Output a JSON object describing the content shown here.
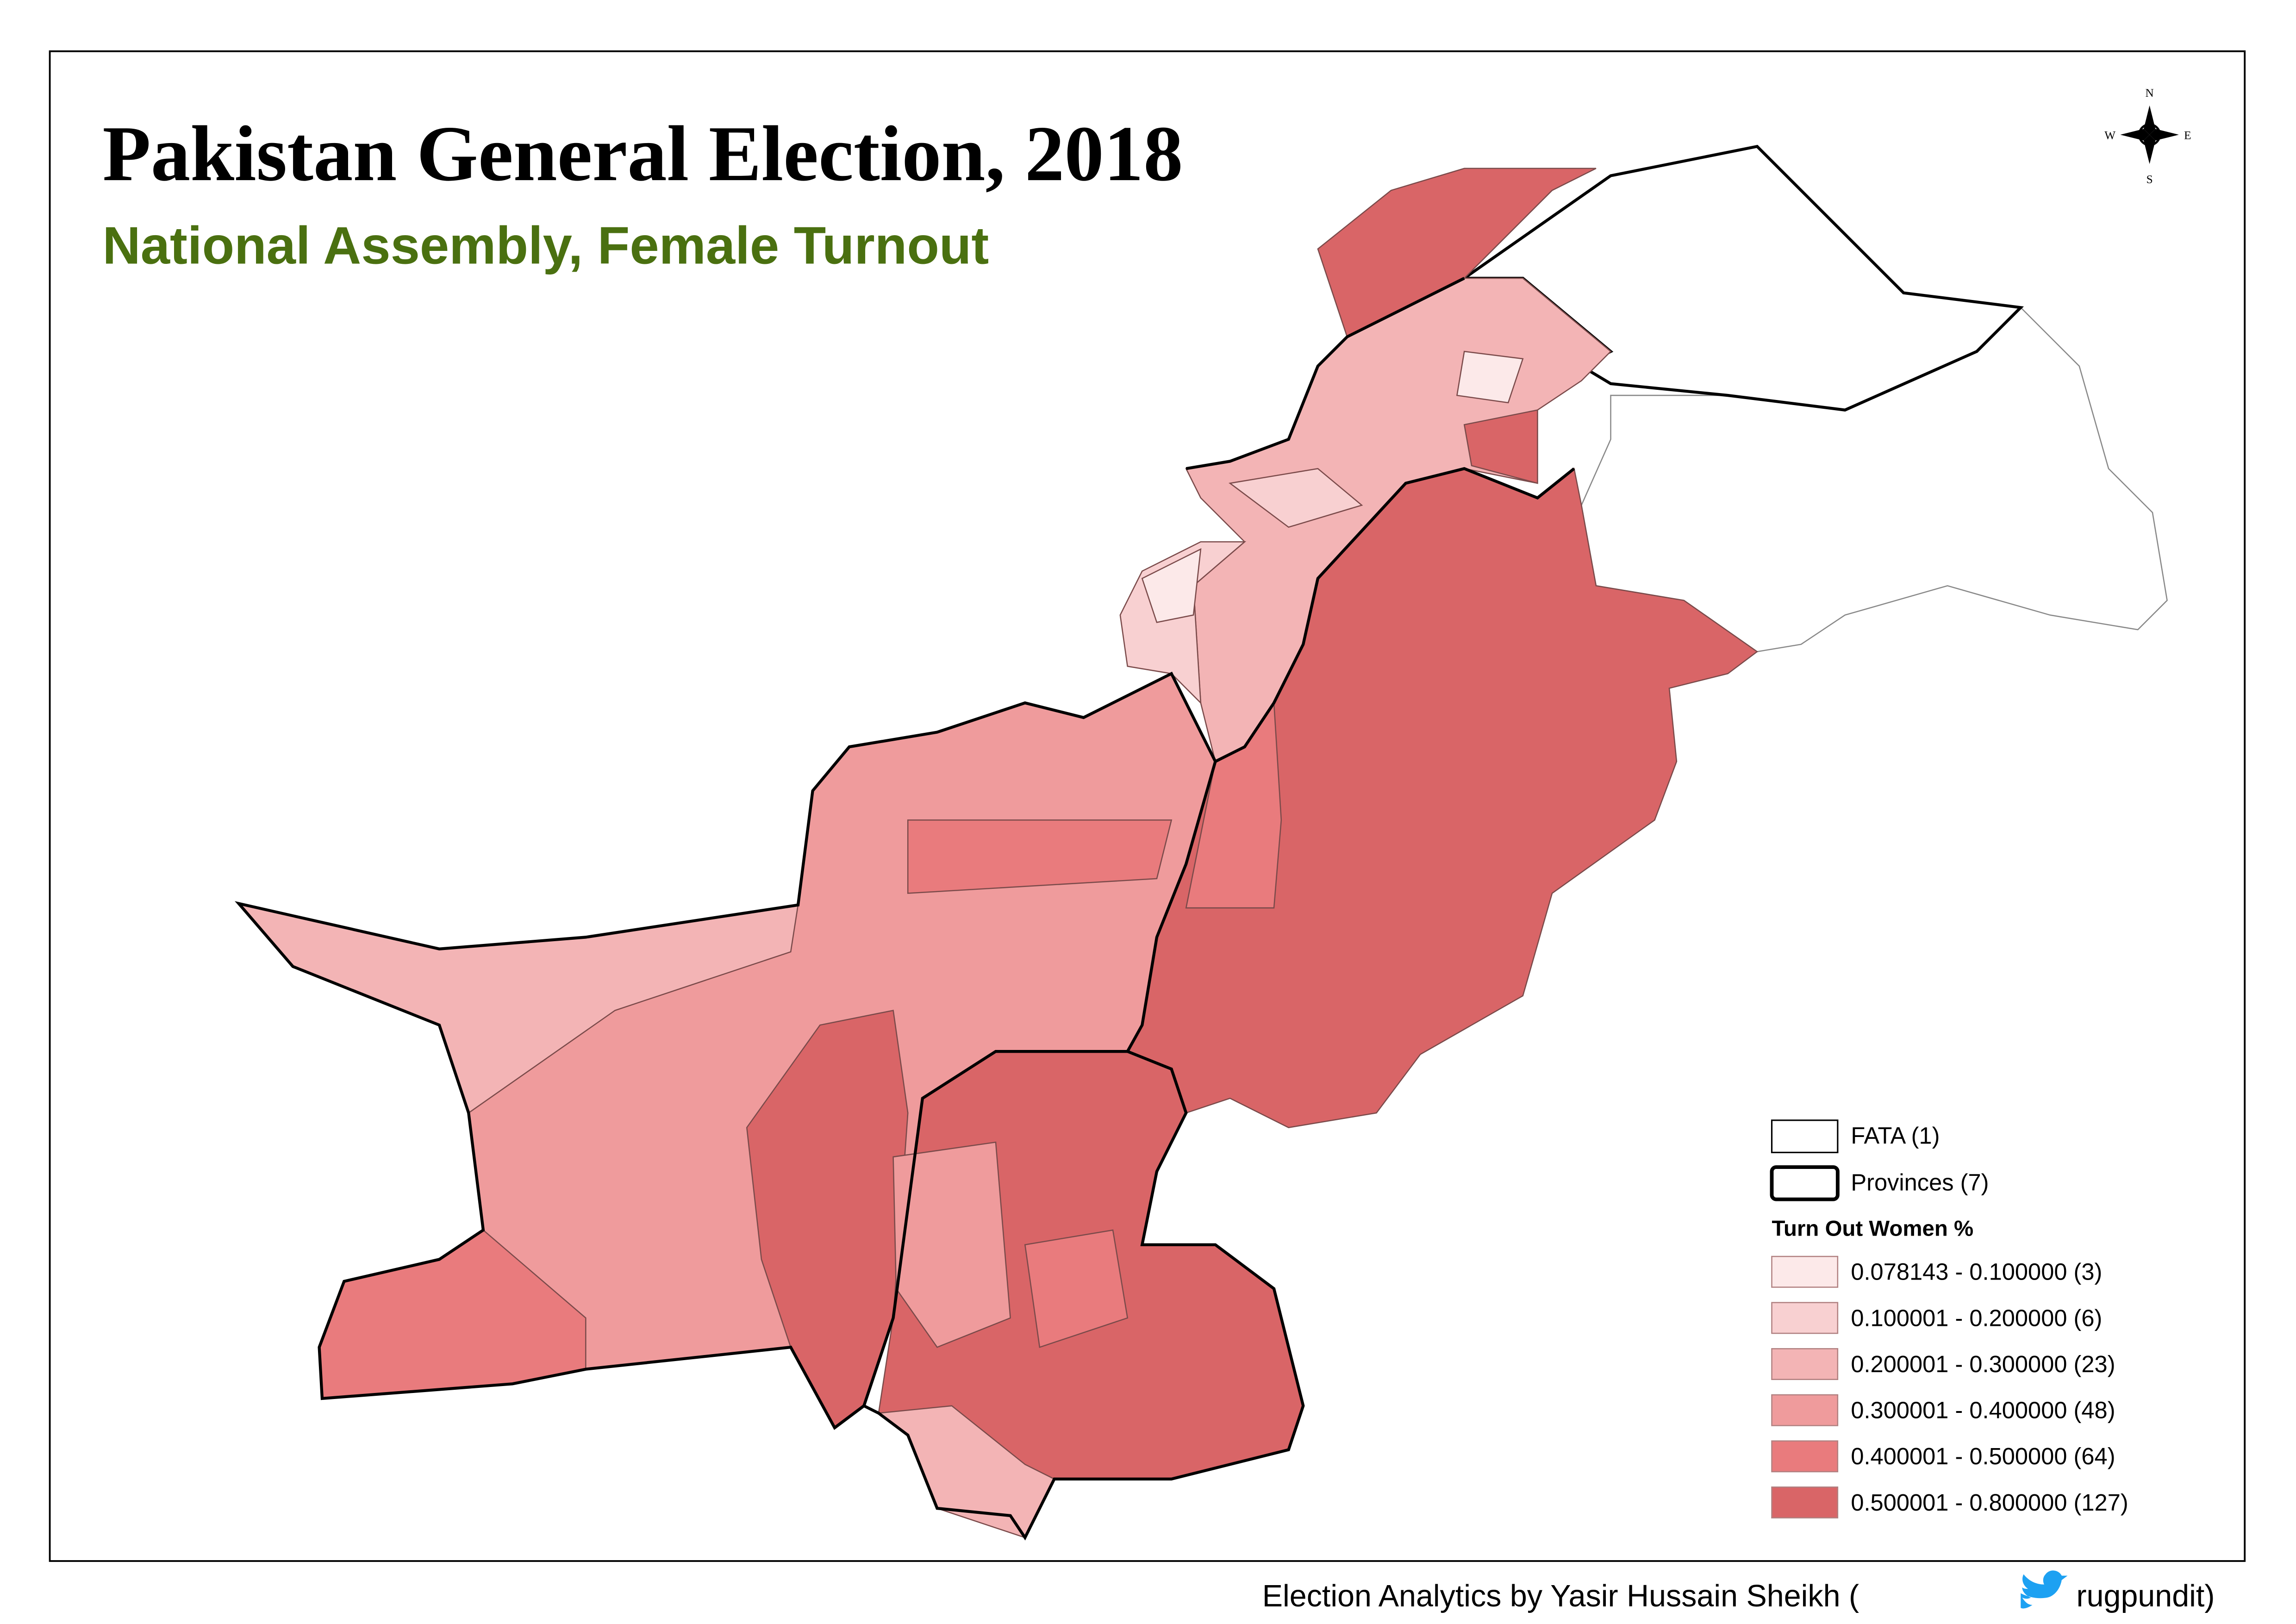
{
  "header": {
    "title": "Pakistan General Election, 2018",
    "subtitle": "National Assembly, Female Turnout"
  },
  "compass": {
    "n": "N",
    "s": "S",
    "e": "E",
    "w": "W"
  },
  "legend": {
    "boundaries": [
      {
        "label": "FATA (1)"
      },
      {
        "label": "Provinces (7)"
      }
    ],
    "title": "Turn Out Women %",
    "classes": [
      {
        "label": "0.078143 - 0.100000 (3)",
        "color": "#fce9e9"
      },
      {
        "label": "0.100001 - 0.200000 (6)",
        "color": "#f8d0d1"
      },
      {
        "label": "0.200001 - 0.300000 (23)",
        "color": "#f3b4b5"
      },
      {
        "label": "0.300001 - 0.400000 (48)",
        "color": "#ef9b9c"
      },
      {
        "label": "0.400001 - 0.500000 (64)",
        "color": "#e97b7d"
      },
      {
        "label": "0.500001 - 0.800000 (127)",
        "color": "#d96567"
      }
    ]
  },
  "credit": {
    "text": "Election Analytics by Yasir Hussain Sheikh (",
    "handle": "rugpundit)"
  }
}
